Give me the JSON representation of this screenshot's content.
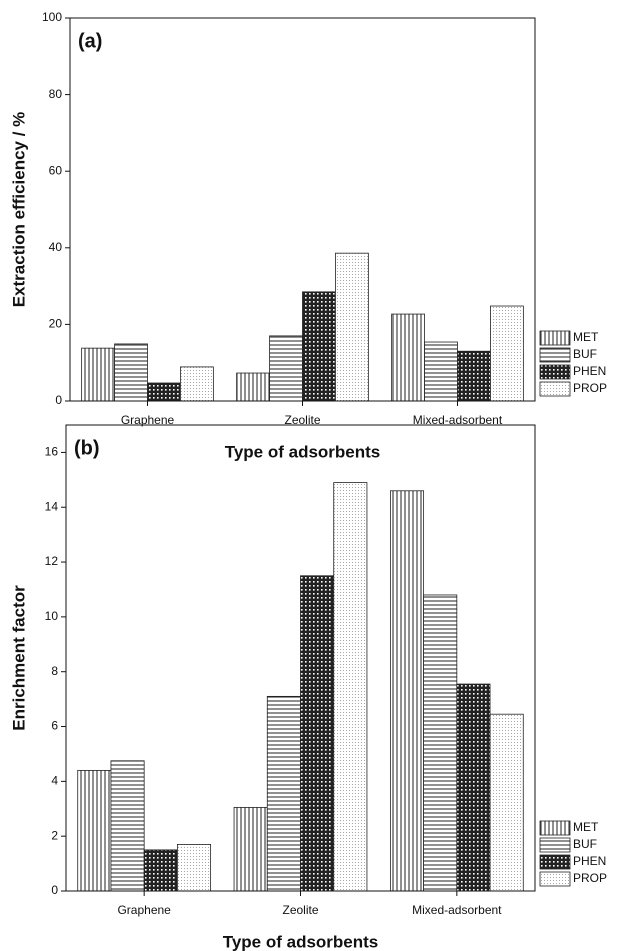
{
  "chart_data": [
    {
      "type": "bar",
      "annotation": "(a)",
      "ylabel": "Extraction efficiency / %",
      "xlabel": "Type of adsorbents",
      "categories": [
        "Graphene",
        "Zeolite",
        "Mixed-adsorbent"
      ],
      "series": [
        {
          "name": "MET",
          "pattern": "vertical",
          "values": [
            13.8,
            7.3,
            22.7
          ]
        },
        {
          "name": "BUF",
          "pattern": "horizontal",
          "values": [
            14.9,
            17,
            15.4
          ]
        },
        {
          "name": "PHEN",
          "pattern": "checker",
          "values": [
            4.7,
            28.5,
            13
          ]
        },
        {
          "name": "PROP",
          "pattern": "dots",
          "values": [
            8.9,
            38.6,
            24.8
          ]
        }
      ],
      "ylim": [
        0,
        100
      ],
      "yticks": [
        0,
        20,
        40,
        60,
        80,
        100
      ]
    },
    {
      "type": "bar",
      "annotation": "(b)",
      "ylabel": "Enrichment factor",
      "xlabel": "Type of adsorbents",
      "categories": [
        "Graphene",
        "Zeolite",
        "Mixed-adsorbent"
      ],
      "series": [
        {
          "name": "MET",
          "pattern": "vertical",
          "values": [
            4.4,
            3.05,
            14.6
          ]
        },
        {
          "name": "BUF",
          "pattern": "horizontal",
          "values": [
            4.75,
            7.1,
            10.8
          ]
        },
        {
          "name": "PHEN",
          "pattern": "checker",
          "values": [
            1.5,
            11.5,
            7.55
          ]
        },
        {
          "name": "PROP",
          "pattern": "dots",
          "values": [
            1.7,
            14.9,
            6.45
          ]
        }
      ],
      "ylim": [
        0,
        17
      ],
      "yticks": [
        0,
        2,
        4,
        6,
        8,
        10,
        12,
        14,
        16
      ]
    }
  ]
}
